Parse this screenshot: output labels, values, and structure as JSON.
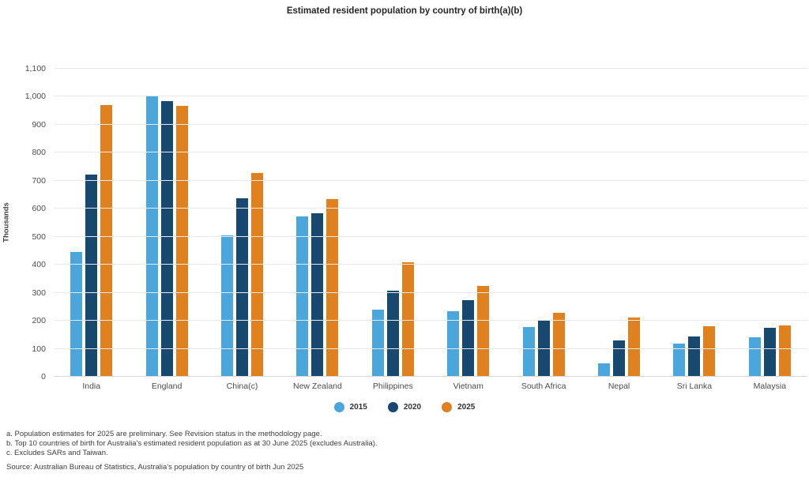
{
  "title": "Estimated resident population by country of birth(a)(b)",
  "chart_data": {
    "type": "bar",
    "title": "Estimated resident population by country of birth(a)(b)",
    "xlabel": "",
    "ylabel": "Thousands",
    "ylim": [
      0,
      1100
    ],
    "y_tick_step": 100,
    "grid": true,
    "legend_position": "bottom",
    "categories": [
      "India",
      "England",
      "China(c)",
      "New Zealand",
      "Philippines",
      "Vietnam",
      "South Africa",
      "Nepal",
      "Sri Lanka",
      "Malaysia"
    ],
    "series": [
      {
        "name": "2015",
        "color": "#4AA6DB",
        "values": [
          445,
          1004,
          505,
          572,
          239,
          234,
          177,
          48,
          119,
          142
        ]
      },
      {
        "name": "2020",
        "color": "#17486F",
        "values": [
          722,
          984,
          637,
          583,
          307,
          274,
          199,
          131,
          144,
          176
        ]
      },
      {
        "name": "2025",
        "color": "#E0811F",
        "values": [
          970,
          968,
          729,
          634,
          408,
          324,
          229,
          212,
          181,
          182
        ]
      }
    ]
  },
  "footnotes": [
    "a. Population estimates for 2025 are preliminary. See Revision status in the methodology page.",
    "b. Top 10 countries of birth for Australia's estimated resident population as at 30 June 2025 (excludes Australia).",
    "c. Excludes SARs and Taiwan."
  ],
  "source": "Source: Australian Bureau of Statistics, Australia's population by country of birth Jun 2025",
  "colors": {
    "grid": "#e9e9e9",
    "baseline": "#d8d8d8",
    "tick_text": "#4c4c4c"
  }
}
